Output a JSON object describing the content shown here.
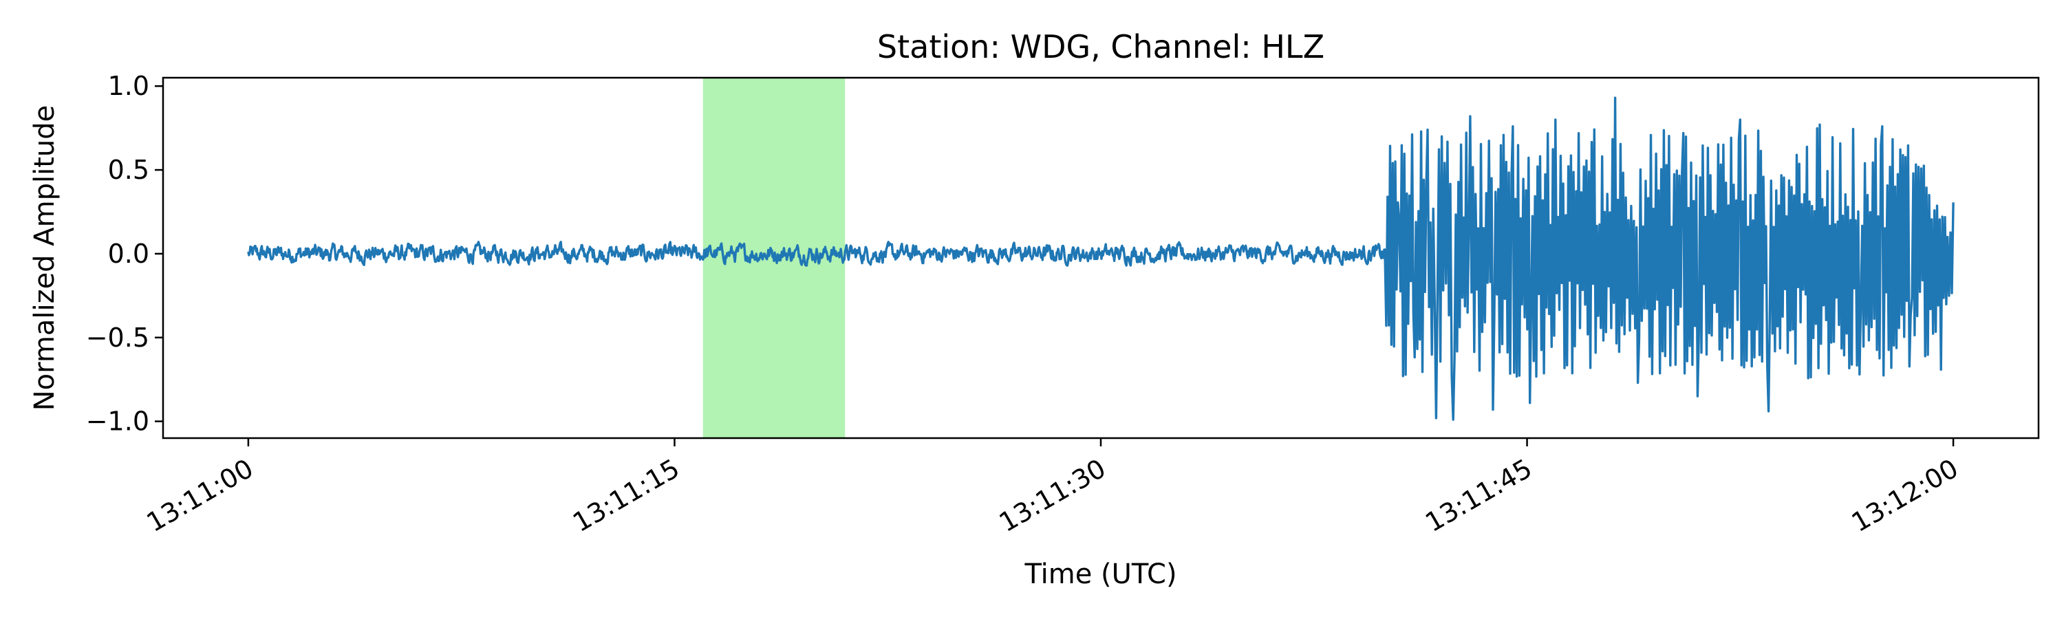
{
  "chart_data": {
    "type": "line",
    "title": "Station: WDG, Channel: HLZ",
    "xlabel": "Time (UTC)",
    "ylabel": "Normalized Amplitude",
    "x_range_seconds": [
      -3,
      63
    ],
    "xlim": [
      "13:10:57",
      "13:12:03"
    ],
    "ylim": [
      -1.1,
      1.05
    ],
    "x_ticks": [
      {
        "t": 0,
        "label": "13:11:00"
      },
      {
        "t": 15,
        "label": "13:11:15"
      },
      {
        "t": 30,
        "label": "13:11:30"
      },
      {
        "t": 45,
        "label": "13:11:45"
      },
      {
        "t": 60,
        "label": "13:12:00"
      }
    ],
    "y_ticks": [
      {
        "v": 1.0,
        "label": "1.0"
      },
      {
        "v": 0.5,
        "label": "0.5"
      },
      {
        "v": 0.0,
        "label": "0.0"
      },
      {
        "v": -0.5,
        "label": "−0.5"
      },
      {
        "v": -1.0,
        "label": "−1.0"
      }
    ],
    "highlight_window": {
      "start": "13:11:16",
      "end": "13:11:21",
      "color": "#b2f2b2"
    },
    "series": [
      {
        "color": "#1f77b4",
        "start": "13:11:00",
        "end": "13:12:00",
        "noise_segment": {
          "start": "13:11:00",
          "end": "13:11:40",
          "amplitude_range": [
            -0.07,
            0.07
          ]
        },
        "event_onset": "13:11:40",
        "event_peaks": [
          {
            "t": "13:11:40.5",
            "v": 0.2
          },
          {
            "t": "13:11:41.0",
            "v": -0.35
          },
          {
            "t": "13:11:41.5",
            "v": 0.74
          },
          {
            "t": "13:11:41.8",
            "v": -0.98
          },
          {
            "t": "13:11:42.0",
            "v": 0.7
          },
          {
            "t": "13:11:42.4",
            "v": -0.99
          },
          {
            "t": "13:11:43.0",
            "v": 0.82
          },
          {
            "t": "13:11:43.8",
            "v": -0.93
          },
          {
            "t": "13:11:44.5",
            "v": 0.76
          },
          {
            "t": "13:11:45.1",
            "v": -0.89
          },
          {
            "t": "13:11:46.0",
            "v": 0.8
          },
          {
            "t": "13:11:47.0",
            "v": 0.52
          },
          {
            "t": "13:11:48.1",
            "v": 0.93
          },
          {
            "t": "13:11:48.9",
            "v": -0.77
          },
          {
            "t": "13:11:50.5",
            "v": 0.72
          },
          {
            "t": "13:11:51.0",
            "v": -0.85
          },
          {
            "t": "13:11:52.5",
            "v": 0.8
          },
          {
            "t": "13:11:53.5",
            "v": -0.94
          },
          {
            "t": "13:11:55.3",
            "v": 0.77
          },
          {
            "t": "13:11:56.7",
            "v": -0.72
          },
          {
            "t": "13:11:57.5",
            "v": 0.76
          },
          {
            "t": "13:11:58.5",
            "v": -0.37
          },
          {
            "t": "13:11:59.8",
            "v": 0.1
          }
        ]
      }
    ]
  }
}
